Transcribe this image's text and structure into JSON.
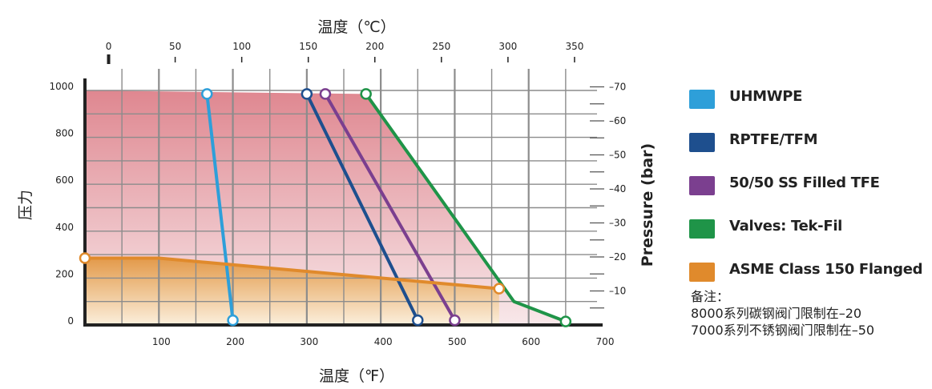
{
  "chart_data": {
    "type": "line",
    "top_axis_title": "温度（℃）",
    "bottom_axis_title": "温度（℉）",
    "left_axis_title": "压力",
    "right_axis_title": "Pressure (bar)",
    "x_f_ticks": [
      "100",
      "200",
      "300",
      "400",
      "500",
      "600",
      "700"
    ],
    "x_c_ticks": [
      "0",
      "50",
      "100",
      "150",
      "200",
      "250",
      "300",
      "350"
    ],
    "y_left_ticks": [
      "0",
      "200",
      "400",
      "600",
      "800",
      "1000"
    ],
    "y_right_ticks": [
      "–10",
      "–20",
      "–30",
      "–40",
      "–50",
      "–60",
      "–70"
    ],
    "xlim_f": [
      0,
      700
    ],
    "ylim_psi": [
      0,
      1000
    ],
    "series": [
      {
        "name": "UHMWPE",
        "color": "#2e9fd9",
        "x": [
          165,
          200
        ],
        "y": [
          985,
          20
        ]
      },
      {
        "name": "RPTFE/TFM",
        "color": "#1e4f8e",
        "x": [
          300,
          450
        ],
        "y": [
          985,
          20
        ]
      },
      {
        "name": "50/50 SS Filled TFE",
        "color": "#7b3f8f",
        "x": [
          325,
          500
        ],
        "y": [
          985,
          20
        ]
      },
      {
        "name": "Valves: Tek-Fil",
        "color": "#1f9448",
        "x": [
          380,
          580,
          650
        ],
        "y": [
          985,
          100,
          15
        ]
      },
      {
        "name": "ASME Class 150 Flanged",
        "color": "#e08a2c",
        "x": [
          0,
          100,
          560
        ],
        "y": [
          285,
          285,
          155
        ]
      }
    ]
  },
  "legend": [
    {
      "label": "UHMWPE",
      "color": "#2e9fd9"
    },
    {
      "label": "RPTFE/TFM",
      "color": "#1e4f8e"
    },
    {
      "label": "50/50 SS Filled TFE",
      "color": "#7b3f8f"
    },
    {
      "label": "Valves: Tek-Fil",
      "color": "#1f9448"
    },
    {
      "label": "ASME Class 150 Flanged",
      "color": "#e08a2c"
    }
  ],
  "notes": {
    "heading": "备注：",
    "line1": "8000系列碳钢阀门限制在–20",
    "line2": "7000系列不锈钢阀门限制在–50"
  }
}
